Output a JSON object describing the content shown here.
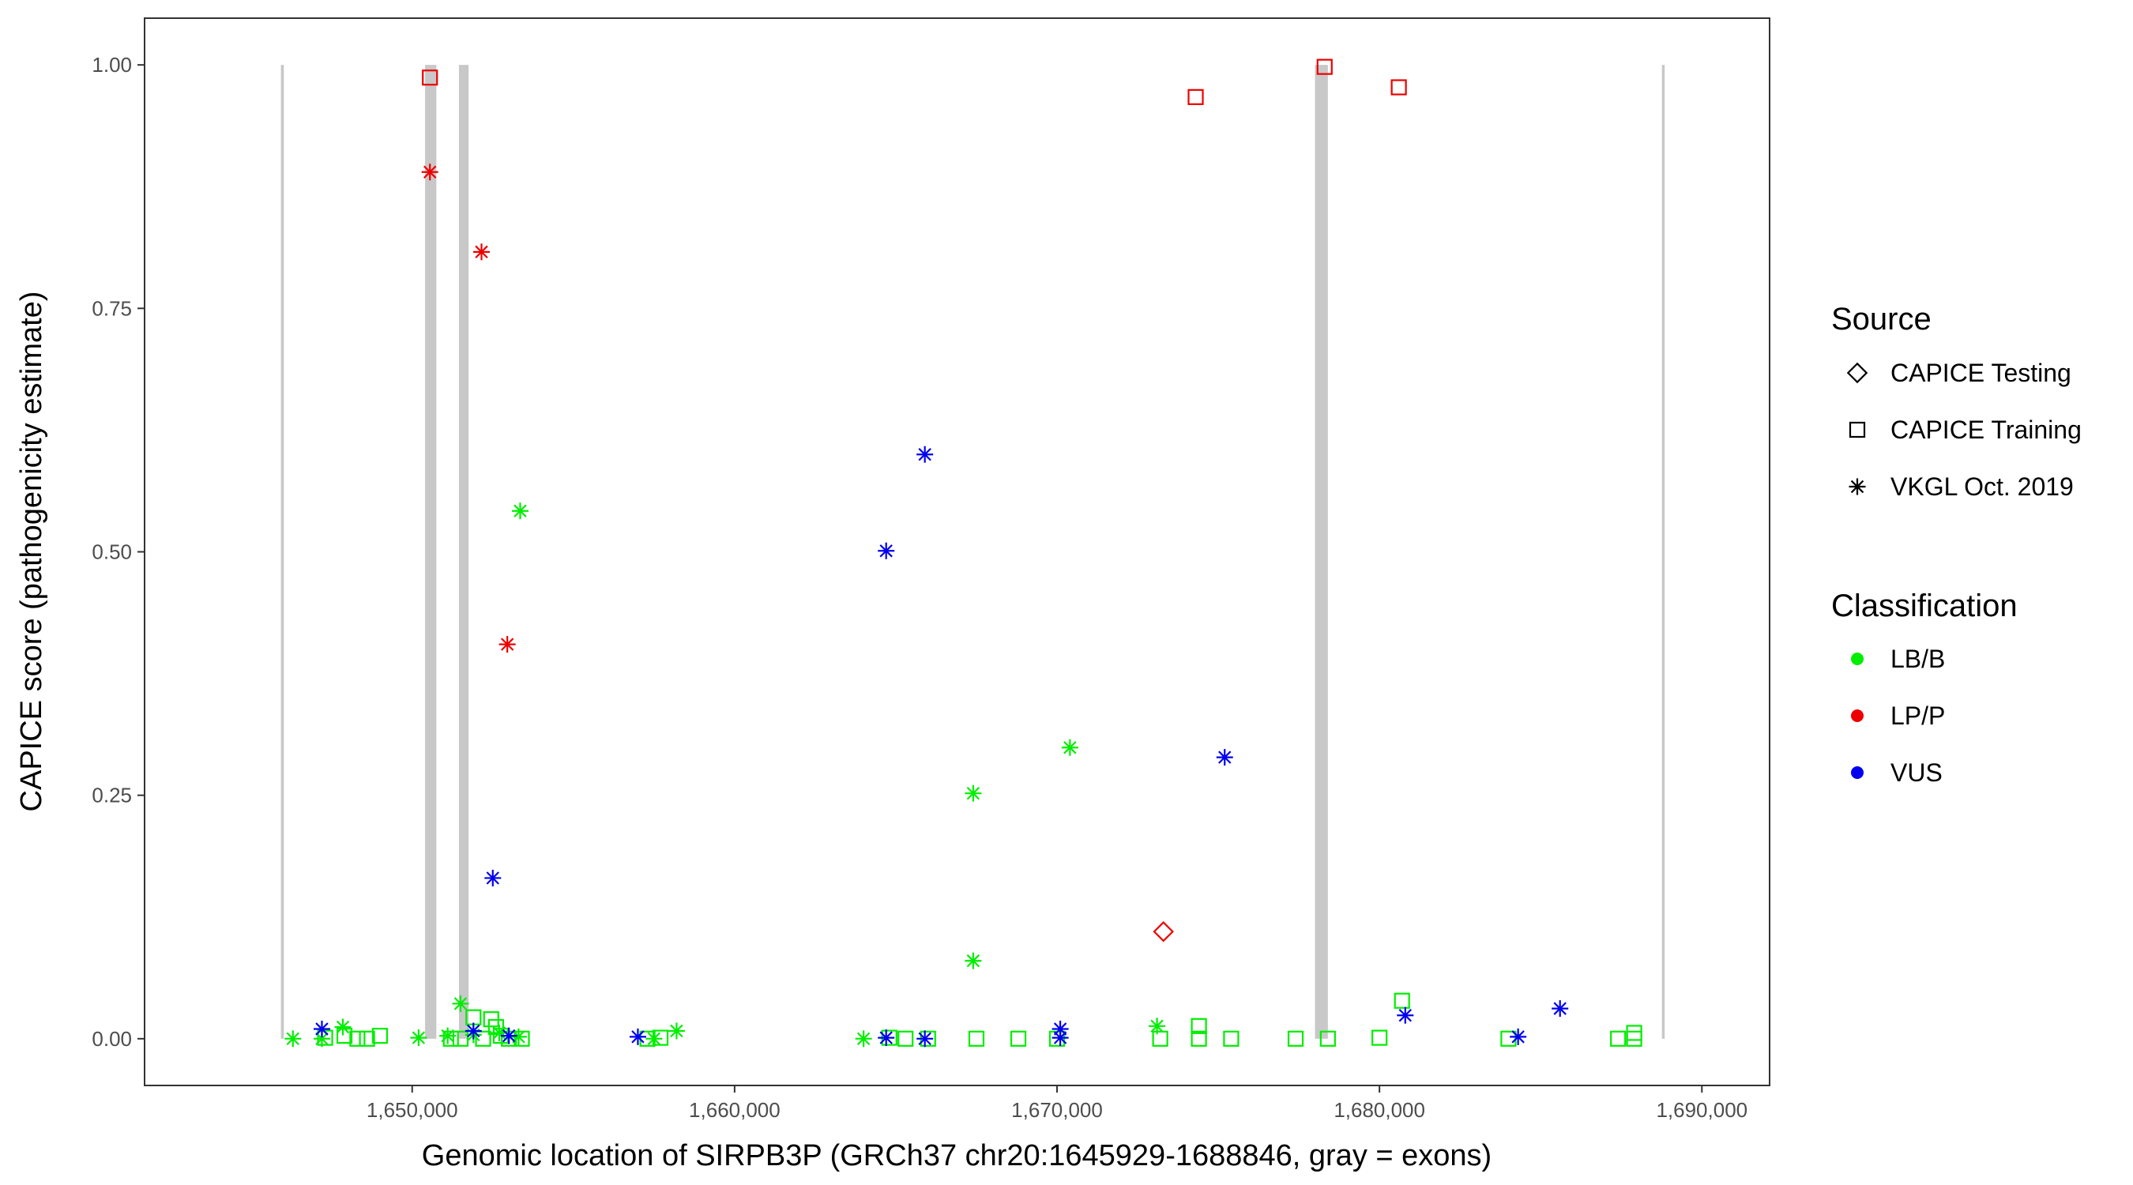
{
  "chart_data": {
    "type": "scatter",
    "title": "",
    "xlabel": "Genomic location of SIRPB3P (GRCh37 chr20:1645929-1688846, gray = exons)",
    "ylabel": "CAPICE score (pathogenicity estimate)",
    "xlim": [
      1641700,
      1692100
    ],
    "ylim": [
      -0.048,
      1.048
    ],
    "x_ticks": [
      1650000,
      1660000,
      1670000,
      1680000,
      1690000
    ],
    "x_tick_labels": [
      "1,650,000",
      "1,660,000",
      "1,670,000",
      "1,680,000",
      "1,690,000"
    ],
    "y_ticks": [
      0,
      0.25,
      0.5,
      0.75,
      1
    ],
    "y_tick_labels": [
      "0.00",
      "0.25",
      "0.50",
      "0.75",
      "1.00"
    ],
    "grid": false,
    "legend_position": "right",
    "exons": [
      {
        "start": 1645929,
        "end": 1646020
      },
      {
        "start": 1650400,
        "end": 1650750
      },
      {
        "start": 1651450,
        "end": 1651750
      },
      {
        "start": 1678000,
        "end": 1678400
      },
      {
        "start": 1688760,
        "end": 1688846
      }
    ],
    "legend": {
      "source": {
        "title": "Source",
        "entries": [
          {
            "label": "CAPICE Testing",
            "shape": "diamond"
          },
          {
            "label": "CAPICE Training",
            "shape": "square"
          },
          {
            "label": "VKGL Oct. 2019",
            "shape": "asterisk"
          }
        ]
      },
      "classification": {
        "title": "Classification",
        "entries": [
          {
            "label": "LB/B",
            "color": "#00ee00"
          },
          {
            "label": "LP/P",
            "color": "#ee0000"
          },
          {
            "label": "VUS",
            "color": "#0000ee"
          }
        ]
      }
    },
    "points": [
      {
        "x": 1650550,
        "y": 0.987,
        "source": "CAPICE Training",
        "class": "LP/P"
      },
      {
        "x": 1674300,
        "y": 0.967,
        "source": "CAPICE Training",
        "class": "LP/P"
      },
      {
        "x": 1678300,
        "y": 0.998,
        "source": "CAPICE Training",
        "class": "LP/P"
      },
      {
        "x": 1680600,
        "y": 0.977,
        "source": "CAPICE Training",
        "class": "LP/P"
      },
      {
        "x": 1650550,
        "y": 0.89,
        "source": "VKGL Oct. 2019",
        "class": "LP/P"
      },
      {
        "x": 1652150,
        "y": 0.808,
        "source": "VKGL Oct. 2019",
        "class": "LP/P"
      },
      {
        "x": 1652950,
        "y": 0.405,
        "source": "VKGL Oct. 2019",
        "class": "LP/P"
      },
      {
        "x": 1673300,
        "y": 0.11,
        "source": "CAPICE Testing",
        "class": "LP/P"
      },
      {
        "x": 1653350,
        "y": 0.542,
        "source": "VKGL Oct. 2019",
        "class": "LB/B"
      },
      {
        "x": 1667400,
        "y": 0.252,
        "source": "VKGL Oct. 2019",
        "class": "LB/B"
      },
      {
        "x": 1670400,
        "y": 0.299,
        "source": "VKGL Oct. 2019",
        "class": "LB/B"
      },
      {
        "x": 1667400,
        "y": 0.08,
        "source": "VKGL Oct. 2019",
        "class": "LB/B"
      },
      {
        "x": 1651500,
        "y": 0.036,
        "source": "VKGL Oct. 2019",
        "class": "LB/B"
      },
      {
        "x": 1646300,
        "y": 0.0,
        "source": "VKGL Oct. 2019",
        "class": "LB/B"
      },
      {
        "x": 1647200,
        "y": 0.0,
        "source": "VKGL Oct. 2019",
        "class": "LB/B"
      },
      {
        "x": 1647850,
        "y": 0.012,
        "source": "VKGL Oct. 2019",
        "class": "LB/B"
      },
      {
        "x": 1650200,
        "y": 0.001,
        "source": "VKGL Oct. 2019",
        "class": "LB/B"
      },
      {
        "x": 1651100,
        "y": 0.003,
        "source": "VKGL Oct. 2019",
        "class": "LB/B"
      },
      {
        "x": 1651900,
        "y": 0.004,
        "source": "VKGL Oct. 2019",
        "class": "LB/B"
      },
      {
        "x": 1652700,
        "y": 0.006,
        "source": "VKGL Oct. 2019",
        "class": "LB/B"
      },
      {
        "x": 1653300,
        "y": 0.002,
        "source": "VKGL Oct. 2019",
        "class": "LB/B"
      },
      {
        "x": 1657500,
        "y": 0.0,
        "source": "VKGL Oct. 2019",
        "class": "LB/B"
      },
      {
        "x": 1658200,
        "y": 0.008,
        "source": "VKGL Oct. 2019",
        "class": "LB/B"
      },
      {
        "x": 1664000,
        "y": 0.0,
        "source": "VKGL Oct. 2019",
        "class": "LB/B"
      },
      {
        "x": 1673100,
        "y": 0.013,
        "source": "VKGL Oct. 2019",
        "class": "LB/B"
      },
      {
        "x": 1647300,
        "y": 0.001,
        "source": "CAPICE Training",
        "class": "LB/B"
      },
      {
        "x": 1647900,
        "y": 0.003,
        "source": "CAPICE Training",
        "class": "LB/B"
      },
      {
        "x": 1648300,
        "y": 0.0,
        "source": "CAPICE Training",
        "class": "LB/B"
      },
      {
        "x": 1648600,
        "y": 0.0,
        "source": "CAPICE Training",
        "class": "LB/B"
      },
      {
        "x": 1649000,
        "y": 0.003,
        "source": "CAPICE Training",
        "class": "LB/B"
      },
      {
        "x": 1651200,
        "y": 0.0,
        "source": "CAPICE Training",
        "class": "LB/B"
      },
      {
        "x": 1651500,
        "y": 0.0,
        "source": "CAPICE Training",
        "class": "LB/B"
      },
      {
        "x": 1651900,
        "y": 0.022,
        "source": "CAPICE Training",
        "class": "LB/B"
      },
      {
        "x": 1652200,
        "y": 0.0,
        "source": "CAPICE Training",
        "class": "LB/B"
      },
      {
        "x": 1652450,
        "y": 0.02,
        "source": "CAPICE Training",
        "class": "LB/B"
      },
      {
        "x": 1652600,
        "y": 0.012,
        "source": "CAPICE Training",
        "class": "LB/B"
      },
      {
        "x": 1652750,
        "y": 0.003,
        "source": "CAPICE Training",
        "class": "LB/B"
      },
      {
        "x": 1653000,
        "y": 0.0,
        "source": "CAPICE Training",
        "class": "LB/B"
      },
      {
        "x": 1653400,
        "y": 0.0,
        "source": "CAPICE Training",
        "class": "LB/B"
      },
      {
        "x": 1657300,
        "y": 0.0,
        "source": "CAPICE Training",
        "class": "LB/B"
      },
      {
        "x": 1657700,
        "y": 0.001,
        "source": "CAPICE Training",
        "class": "LB/B"
      },
      {
        "x": 1664800,
        "y": 0.001,
        "source": "CAPICE Training",
        "class": "LB/B"
      },
      {
        "x": 1665300,
        "y": 0.0,
        "source": "CAPICE Training",
        "class": "LB/B"
      },
      {
        "x": 1666000,
        "y": 0.0,
        "source": "CAPICE Training",
        "class": "LB/B"
      },
      {
        "x": 1667500,
        "y": 0.0,
        "source": "CAPICE Training",
        "class": "LB/B"
      },
      {
        "x": 1668800,
        "y": 0.0,
        "source": "CAPICE Training",
        "class": "LB/B"
      },
      {
        "x": 1670000,
        "y": 0.0,
        "source": "CAPICE Training",
        "class": "LB/B"
      },
      {
        "x": 1673200,
        "y": 0.0,
        "source": "CAPICE Training",
        "class": "LB/B"
      },
      {
        "x": 1674400,
        "y": 0.0,
        "source": "CAPICE Training",
        "class": "LB/B"
      },
      {
        "x": 1674400,
        "y": 0.013,
        "source": "CAPICE Training",
        "class": "LB/B"
      },
      {
        "x": 1675400,
        "y": 0.0,
        "source": "CAPICE Training",
        "class": "LB/B"
      },
      {
        "x": 1677400,
        "y": 0.0,
        "source": "CAPICE Training",
        "class": "LB/B"
      },
      {
        "x": 1678400,
        "y": 0.0,
        "source": "CAPICE Training",
        "class": "LB/B"
      },
      {
        "x": 1680000,
        "y": 0.001,
        "source": "CAPICE Training",
        "class": "LB/B"
      },
      {
        "x": 1680700,
        "y": 0.039,
        "source": "CAPICE Training",
        "class": "LB/B"
      },
      {
        "x": 1684000,
        "y": 0.0,
        "source": "CAPICE Training",
        "class": "LB/B"
      },
      {
        "x": 1687400,
        "y": 0.0,
        "source": "CAPICE Training",
        "class": "LB/B"
      },
      {
        "x": 1687900,
        "y": 0.0,
        "source": "CAPICE Training",
        "class": "LB/B"
      },
      {
        "x": 1687900,
        "y": 0.006,
        "source": "CAPICE Training",
        "class": "LB/B"
      },
      {
        "x": 1665900,
        "y": 0.6,
        "source": "VKGL Oct. 2019",
        "class": "VUS"
      },
      {
        "x": 1664700,
        "y": 0.501,
        "source": "VKGL Oct. 2019",
        "class": "VUS"
      },
      {
        "x": 1675200,
        "y": 0.289,
        "source": "VKGL Oct. 2019",
        "class": "VUS"
      },
      {
        "x": 1652500,
        "y": 0.165,
        "source": "VKGL Oct. 2019",
        "class": "VUS"
      },
      {
        "x": 1685600,
        "y": 0.031,
        "source": "VKGL Oct. 2019",
        "class": "VUS"
      },
      {
        "x": 1680800,
        "y": 0.024,
        "source": "VKGL Oct. 2019",
        "class": "VUS"
      },
      {
        "x": 1647200,
        "y": 0.01,
        "source": "VKGL Oct. 2019",
        "class": "VUS"
      },
      {
        "x": 1651900,
        "y": 0.008,
        "source": "VKGL Oct. 2019",
        "class": "VUS"
      },
      {
        "x": 1653000,
        "y": 0.003,
        "source": "VKGL Oct. 2019",
        "class": "VUS"
      },
      {
        "x": 1657000,
        "y": 0.002,
        "source": "VKGL Oct. 2019",
        "class": "VUS"
      },
      {
        "x": 1664700,
        "y": 0.001,
        "source": "VKGL Oct. 2019",
        "class": "VUS"
      },
      {
        "x": 1665900,
        "y": 0.0,
        "source": "VKGL Oct. 2019",
        "class": "VUS"
      },
      {
        "x": 1670100,
        "y": 0.01,
        "source": "VKGL Oct. 2019",
        "class": "VUS"
      },
      {
        "x": 1670100,
        "y": 0.001,
        "source": "VKGL Oct. 2019",
        "class": "VUS"
      },
      {
        "x": 1684300,
        "y": 0.002,
        "source": "VKGL Oct. 2019",
        "class": "VUS"
      }
    ]
  }
}
